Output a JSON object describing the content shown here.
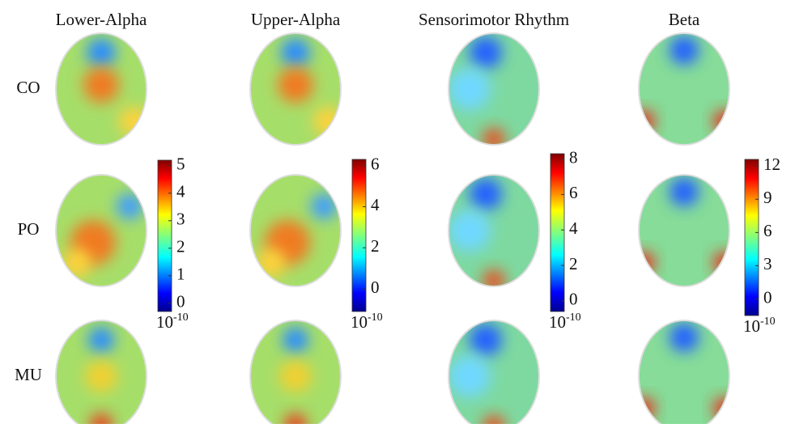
{
  "columns": [
    "Lower-Alpha",
    "Upper-Alpha",
    "Sensorimotor Rhythm",
    "Beta"
  ],
  "rows": [
    "CO",
    "PO",
    "MU"
  ],
  "colorbars": [
    {
      "lim": [
        -0.3,
        5.2
      ],
      "ticks": [
        0,
        1,
        2,
        3,
        4,
        5
      ],
      "exponent_base": "10",
      "exponent": "-10"
    },
    {
      "lim": [
        -1.1,
        6.3
      ],
      "ticks": [
        0,
        2,
        4,
        6
      ],
      "exponent_base": "10",
      "exponent": "-10"
    },
    {
      "lim": [
        -0.6,
        8.3
      ],
      "ticks": [
        0,
        2,
        4,
        6,
        8
      ],
      "exponent_base": "10",
      "exponent": "-10"
    },
    {
      "lim": [
        -1.5,
        12.6
      ],
      "ticks": [
        0,
        3,
        6,
        9,
        12
      ],
      "exponent_base": "10",
      "exponent": "-10"
    }
  ]
}
